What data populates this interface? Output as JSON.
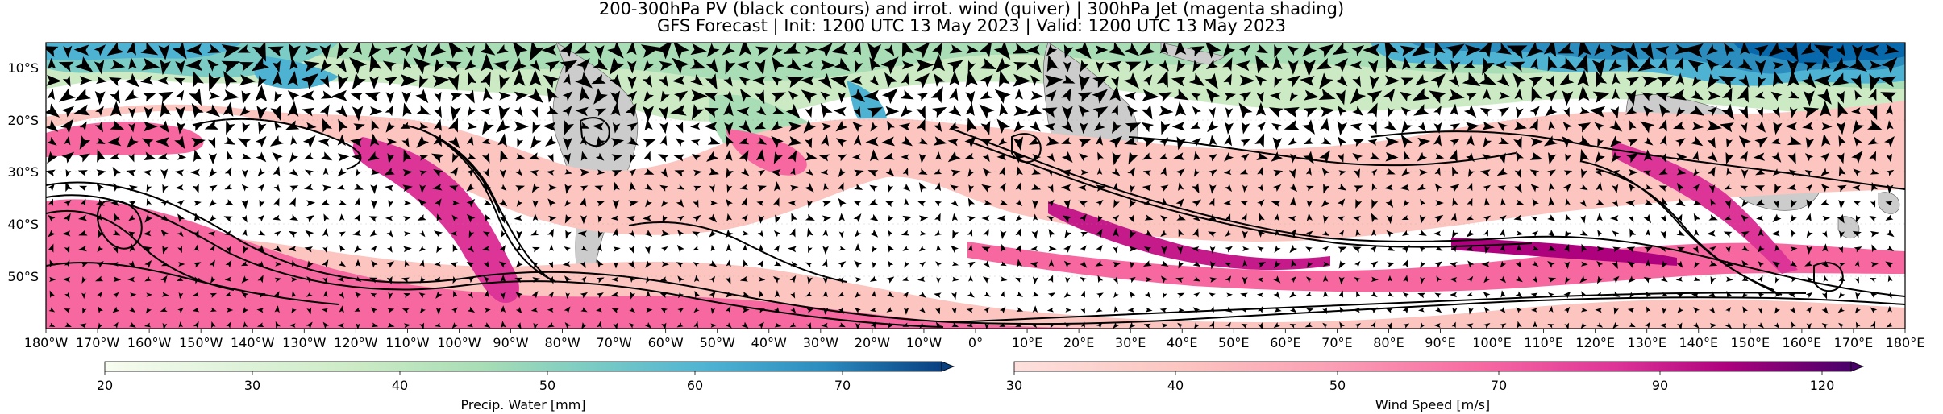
{
  "figure": {
    "title_line1": "200-300hPa PV (black contours) and irrot. wind (quiver) | 300hPa Jet (magenta shading)",
    "title_line2": "GFS Forecast | Init: 1200 UTC 13 May 2023 | Valid: 1200 UTC 13 May 2023"
  },
  "axes": {
    "lat_ticks": [
      "10°S",
      "20°S",
      "30°S",
      "40°S",
      "50°S"
    ],
    "lat_values": [
      -10,
      -20,
      -30,
      -40,
      -50
    ],
    "lon_ticks": [
      "180°W",
      "170°W",
      "160°W",
      "150°W",
      "140°W",
      "130°W",
      "120°W",
      "110°W",
      "100°W",
      "90°W",
      "80°W",
      "70°W",
      "60°W",
      "50°W",
      "40°W",
      "30°W",
      "20°W",
      "10°W",
      "0°",
      "10°E",
      "20°E",
      "30°E",
      "40°E",
      "50°E",
      "60°E",
      "70°E",
      "80°E",
      "90°E",
      "100°E",
      "110°E",
      "120°E",
      "130°E",
      "140°E",
      "150°E",
      "160°E",
      "170°E",
      "180°E"
    ],
    "lon_range": [
      -180,
      180
    ],
    "lat_range": [
      -60,
      -5
    ]
  },
  "colorbars": [
    {
      "label": "Precip. Water [mm]",
      "ticks": [
        "20",
        "30",
        "40",
        "50",
        "60",
        "70"
      ],
      "range": [
        20,
        75
      ],
      "colors": [
        "#f7fcf0",
        "#e0f3db",
        "#ccebc5",
        "#a8ddb5",
        "#7bccc4",
        "#4eb3d3",
        "#2b8cbe",
        "#0868ac",
        "#084081"
      ]
    },
    {
      "label": "Wind Speed [m/s]",
      "ticks": [
        "30",
        "40",
        "50",
        "70",
        "90",
        "120"
      ],
      "colors": [
        "#fde0dd",
        "#fcc5c0",
        "#fa9fb5",
        "#f768a1",
        "#dd3497",
        "#ae017e",
        "#7a0177",
        "#49006a"
      ]
    }
  ],
  "colors": {
    "land": "#cccccc",
    "jet_light": "#fbb4c9",
    "jet_mid": "#f06ea8",
    "jet_dark": "#c51b8a",
    "pw_low": "#e0f3db",
    "pw_mid": "#a8ddb5",
    "pw_high": "#2b8cbe",
    "contour": "#000000"
  }
}
